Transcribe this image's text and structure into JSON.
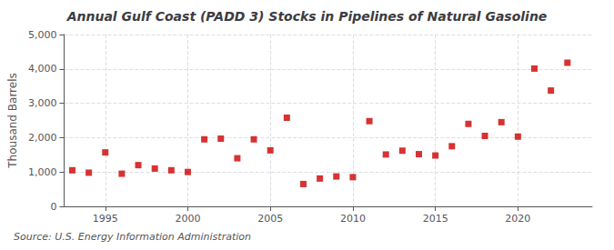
{
  "chart_data": {
    "type": "scatter",
    "title": "Annual Gulf Coast (PADD 3) Stocks in Pipelines of Natural Gasoline",
    "ylabel": "Thousand Barrels",
    "source": "Source: U.S. Energy Information Administration",
    "x": [
      1993,
      1994,
      1995,
      1996,
      1997,
      1998,
      1999,
      2000,
      2001,
      2002,
      2003,
      2004,
      2005,
      2006,
      2007,
      2008,
      2009,
      2010,
      2011,
      2012,
      2013,
      2014,
      2015,
      2016,
      2017,
      2018,
      2019,
      2020,
      2021,
      2022,
      2023
    ],
    "values": [
      1050,
      980,
      1570,
      950,
      1200,
      1100,
      1050,
      1000,
      1950,
      1970,
      1400,
      1950,
      1630,
      2580,
      650,
      810,
      870,
      850,
      2480,
      1510,
      1620,
      1520,
      1480,
      1750,
      2400,
      2050,
      2450,
      2030,
      4010,
      3370,
      4180
    ],
    "color": "#cc0000",
    "marker": "square",
    "xlim": [
      1992.5,
      2024.5
    ],
    "xticks": [
      1995,
      2000,
      2005,
      2010,
      2015,
      2020
    ],
    "ylim": [
      0,
      5000
    ],
    "yticks": [
      0,
      {
        "value": 1000,
        "label": "1,000"
      },
      {
        "value": 2000,
        "label": "2,000"
      },
      {
        "value": 3000,
        "label": "3,000"
      },
      {
        "value": 4000,
        "label": "4,000"
      },
      {
        "value": 5000,
        "label": "5,000"
      }
    ],
    "grid": true
  }
}
